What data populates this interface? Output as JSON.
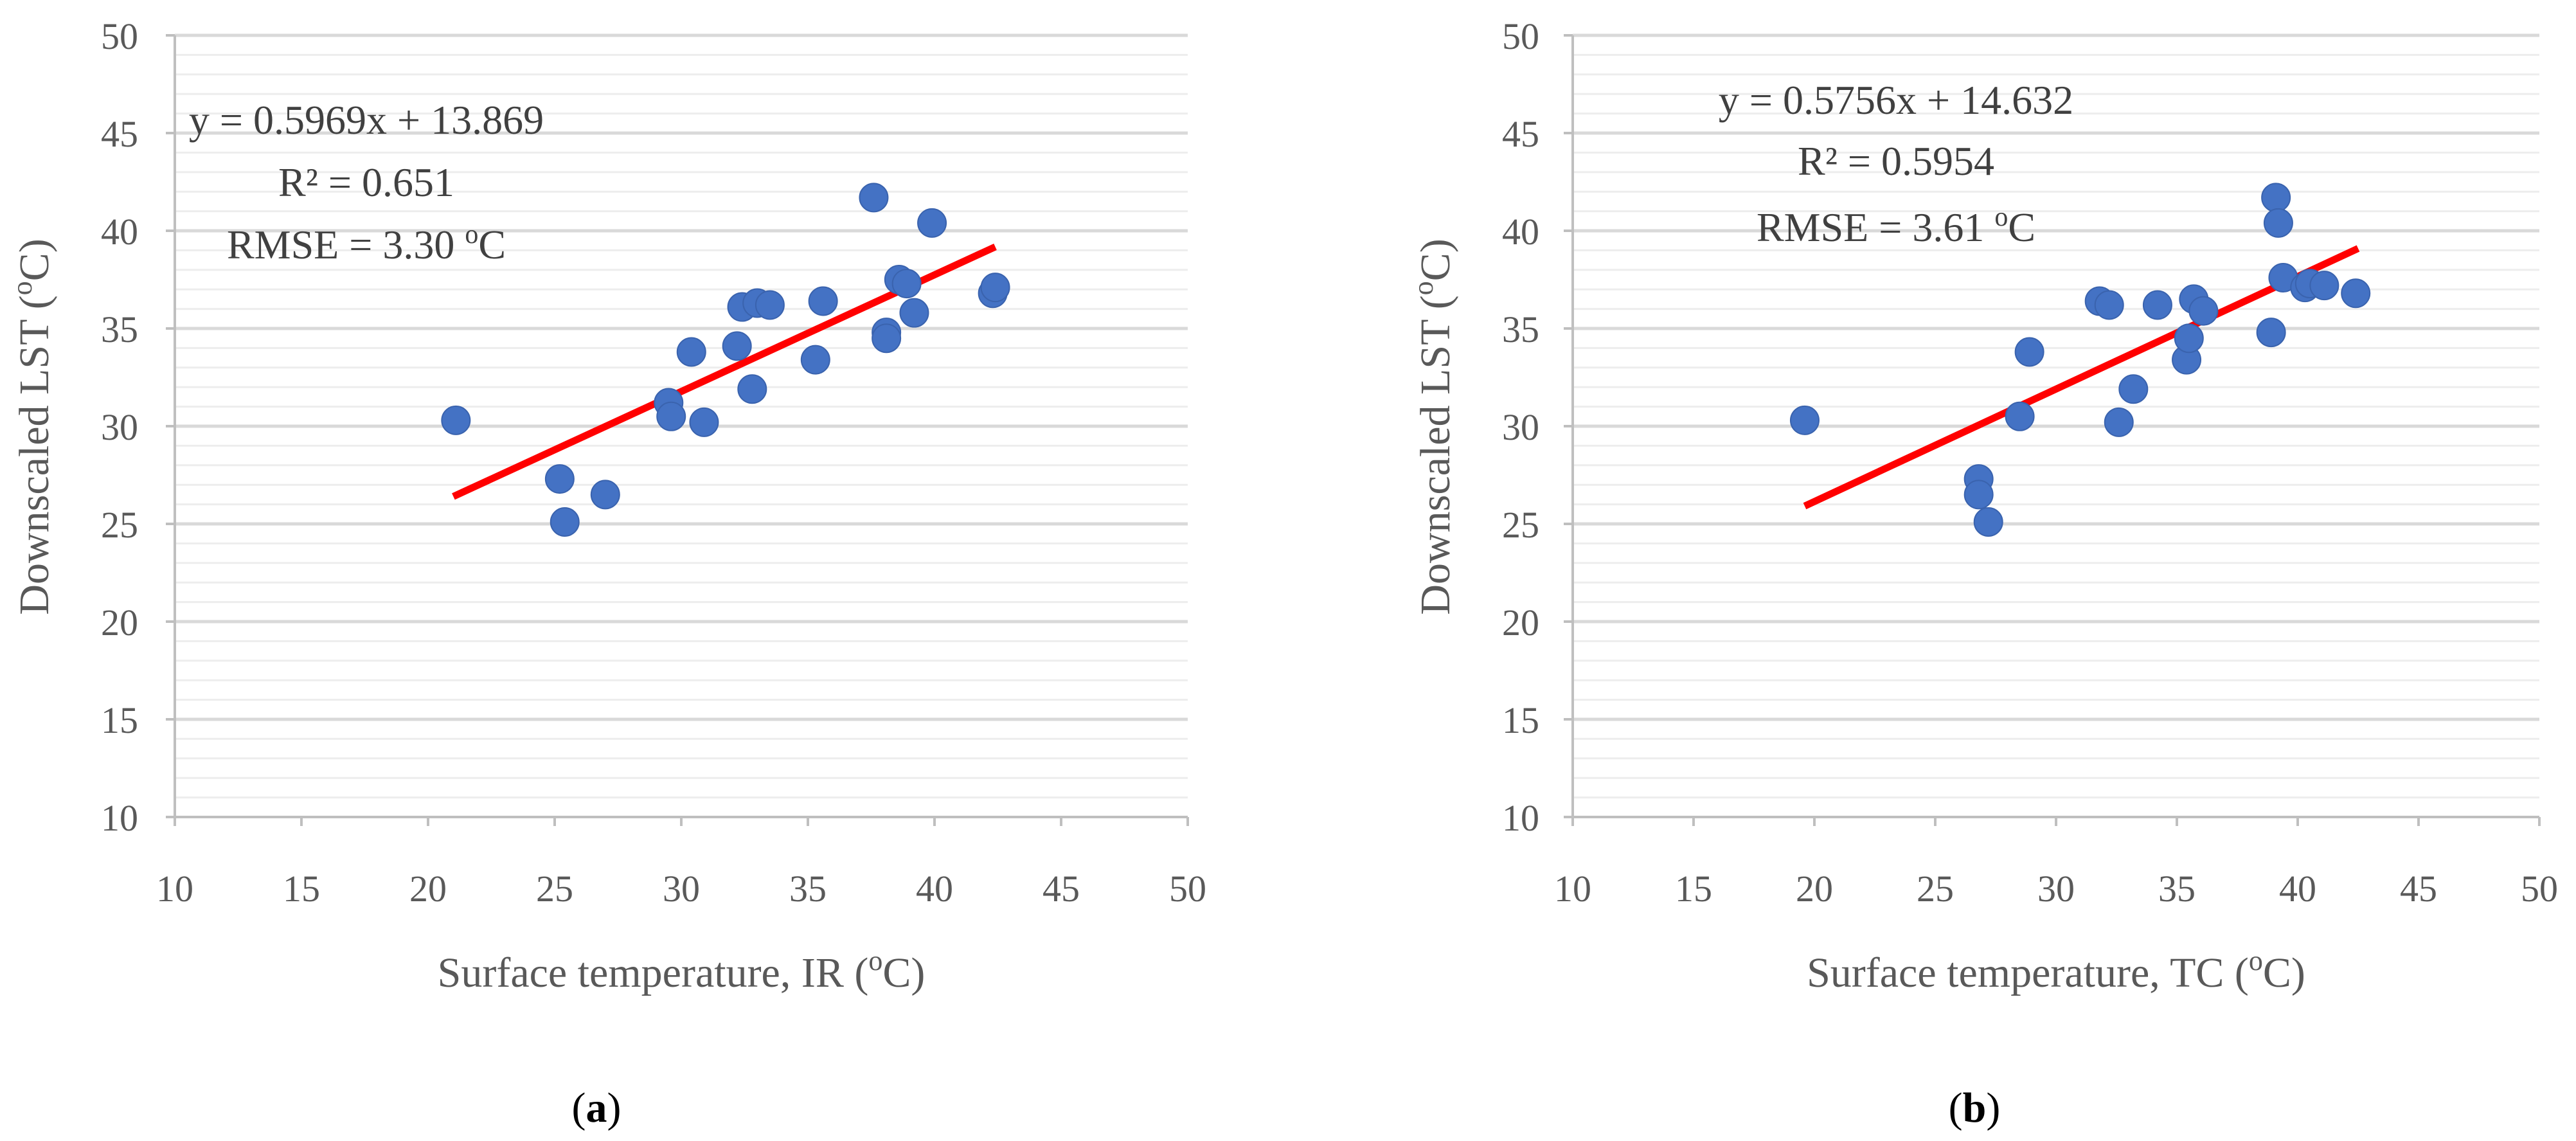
{
  "chart_data": [
    {
      "type": "scatter",
      "panel_label": {
        "open": "(",
        "letter": "a",
        "close": ")"
      },
      "xlabel": {
        "text": "Surface temperature, IR (",
        "sup": "o",
        "tail": "C)"
      },
      "ylabel": {
        "text": "Downscaled LST (",
        "sup": "o",
        "tail": "C)"
      },
      "xlim": [
        10,
        50
      ],
      "ylim": [
        10,
        50
      ],
      "x_ticks": [
        10,
        15,
        20,
        25,
        30,
        35,
        40,
        45,
        50
      ],
      "y_ticks": [
        10,
        15,
        20,
        25,
        30,
        35,
        40,
        45,
        50
      ],
      "x_tick_labels": [
        "10",
        "15",
        "20",
        "25",
        "30",
        "35",
        "40",
        "45",
        "50"
      ],
      "y_tick_labels": [
        "10",
        "15",
        "20",
        "25",
        "30",
        "35",
        "40",
        "45",
        "50"
      ],
      "grid": true,
      "points": [
        {
          "x": 21.1,
          "y": 30.3
        },
        {
          "x": 25.2,
          "y": 27.3
        },
        {
          "x": 25.4,
          "y": 25.1
        },
        {
          "x": 27.0,
          "y": 26.5
        },
        {
          "x": 29.5,
          "y": 31.2
        },
        {
          "x": 29.6,
          "y": 30.5
        },
        {
          "x": 30.4,
          "y": 33.8
        },
        {
          "x": 30.9,
          "y": 30.2
        },
        {
          "x": 32.2,
          "y": 34.1
        },
        {
          "x": 32.4,
          "y": 36.1
        },
        {
          "x": 32.8,
          "y": 31.9
        },
        {
          "x": 33.0,
          "y": 36.3
        },
        {
          "x": 33.5,
          "y": 36.2
        },
        {
          "x": 35.3,
          "y": 33.4
        },
        {
          "x": 35.6,
          "y": 36.4
        },
        {
          "x": 37.6,
          "y": 41.7
        },
        {
          "x": 38.1,
          "y": 34.8
        },
        {
          "x": 38.1,
          "y": 34.5
        },
        {
          "x": 38.6,
          "y": 37.5
        },
        {
          "x": 38.9,
          "y": 37.3
        },
        {
          "x": 39.2,
          "y": 35.8
        },
        {
          "x": 39.9,
          "y": 40.4
        },
        {
          "x": 42.3,
          "y": 36.8
        },
        {
          "x": 42.4,
          "y": 37.1
        }
      ],
      "point_color": "#4472C4",
      "trendline": {
        "slope": 0.5969,
        "intercept": 13.869,
        "x_start": 21.0,
        "x_end": 42.4,
        "color": "#FF0000"
      },
      "annotations": {
        "equation": "y = 0.5969x + 13.869",
        "r_squared": "R² = 0.651",
        "rmse_text": "RMSE = 3.30 ",
        "rmse_sup": "o",
        "rmse_tail": "C"
      }
    },
    {
      "type": "scatter",
      "panel_label": {
        "open": "(",
        "letter": "b",
        "close": ")"
      },
      "xlabel": {
        "text": "Surface temperature, TC (",
        "sup": "o",
        "tail": "C)"
      },
      "ylabel": {
        "text": "Downscaled LST (",
        "sup": "o",
        "tail": "C)"
      },
      "xlim": [
        10,
        50
      ],
      "ylim": [
        10,
        50
      ],
      "x_ticks": [
        10,
        15,
        20,
        25,
        30,
        35,
        40,
        45,
        50
      ],
      "y_ticks": [
        10,
        15,
        20,
        25,
        30,
        35,
        40,
        45,
        50
      ],
      "x_tick_labels": [
        "10",
        "15",
        "20",
        "25",
        "30",
        "35",
        "40",
        "45",
        "50"
      ],
      "y_tick_labels": [
        "10",
        "15",
        "20",
        "25",
        "30",
        "35",
        "40",
        "45",
        "50"
      ],
      "grid": true,
      "points": [
        {
          "x": 19.6,
          "y": 30.3
        },
        {
          "x": 26.8,
          "y": 27.3
        },
        {
          "x": 26.8,
          "y": 26.5
        },
        {
          "x": 27.2,
          "y": 25.1
        },
        {
          "x": 28.5,
          "y": 30.5
        },
        {
          "x": 28.9,
          "y": 33.8
        },
        {
          "x": 31.8,
          "y": 36.4
        },
        {
          "x": 32.2,
          "y": 36.2
        },
        {
          "x": 32.6,
          "y": 30.2
        },
        {
          "x": 33.2,
          "y": 31.9
        },
        {
          "x": 34.2,
          "y": 36.2
        },
        {
          "x": 35.4,
          "y": 33.4
        },
        {
          "x": 35.5,
          "y": 34.5
        },
        {
          "x": 35.7,
          "y": 36.5
        },
        {
          "x": 36.1,
          "y": 35.9
        },
        {
          "x": 38.9,
          "y": 34.8
        },
        {
          "x": 39.1,
          "y": 41.7
        },
        {
          "x": 39.2,
          "y": 40.4
        },
        {
          "x": 39.4,
          "y": 37.6
        },
        {
          "x": 40.3,
          "y": 37.1
        },
        {
          "x": 40.5,
          "y": 37.3
        },
        {
          "x": 41.1,
          "y": 37.2
        },
        {
          "x": 42.4,
          "y": 36.8
        }
      ],
      "point_color": "#4472C4",
      "trendline": {
        "slope": 0.5756,
        "intercept": 14.632,
        "x_start": 19.6,
        "x_end": 42.5,
        "color": "#FF0000"
      },
      "annotations": {
        "equation": "y = 0.5756x + 14.632",
        "r_squared": "R² = 0.5954",
        "rmse_text": "RMSE = 3.61 ",
        "rmse_sup": "o",
        "rmse_tail": "C"
      }
    }
  ]
}
